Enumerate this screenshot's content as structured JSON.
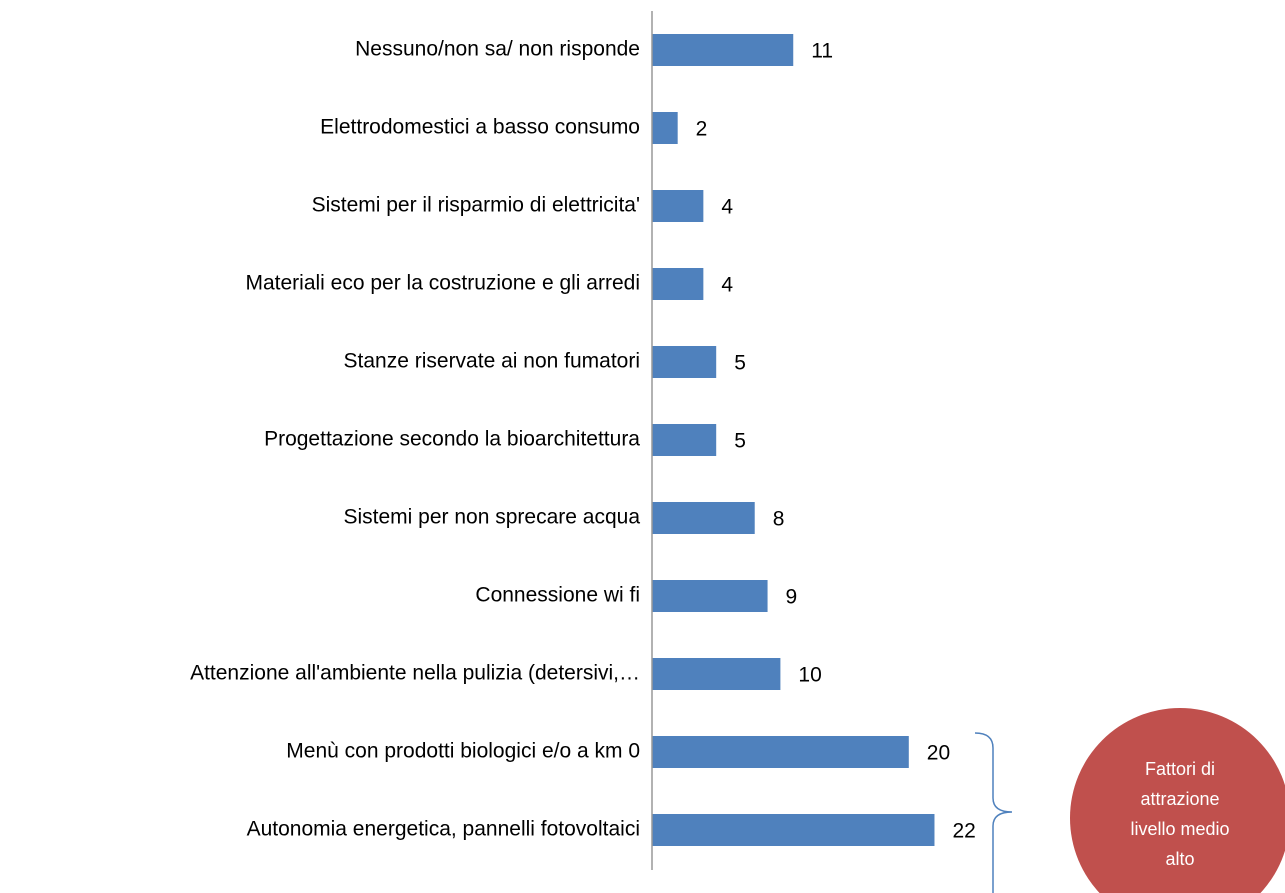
{
  "chart_data": {
    "type": "bar",
    "orientation": "horizontal",
    "categories": [
      "Nessuno/non sa/ non risponde",
      "Elettrodomestici a basso consumo",
      "Sistemi per il risparmio di elettricita'",
      "Materiali eco per la costruzione e gli arredi",
      "Stanze riservate ai non fumatori",
      "Progettazione secondo la bioarchitettura",
      "Sistemi per non sprecare acqua",
      "Connessione wi fi",
      "Attenzione all'ambiente nella pulizia (detersivi,…",
      "Menù con prodotti biologici e/o a km 0",
      "Autonomia energetica, pannelli fotovoltaici"
    ],
    "values": [
      11,
      2,
      4,
      4,
      5,
      5,
      8,
      9,
      10,
      20,
      22
    ],
    "color": "#4f81bd",
    "xlim": [
      0,
      25
    ],
    "annotation": {
      "lines": [
        "Fattori di",
        "attrazione",
        "livello medio",
        "alto"
      ],
      "color": "#c0504d"
    }
  }
}
